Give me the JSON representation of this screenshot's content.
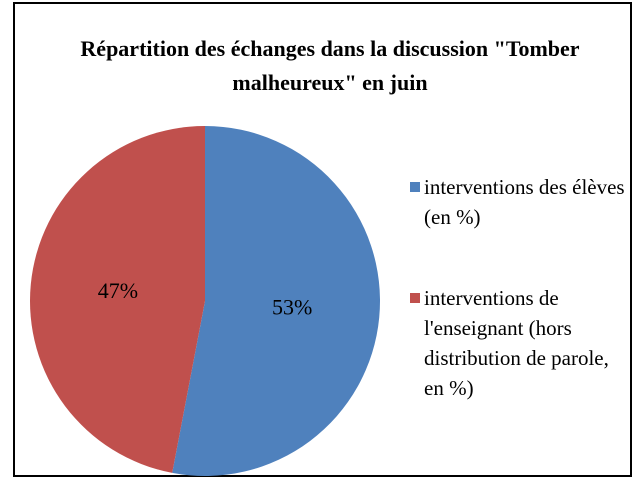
{
  "chart_data": {
    "type": "pie",
    "title": "Répartition des échanges dans la discussion \"Tomber malheureux\" en juin",
    "categories": [
      "interventions des élèves (en %)",
      "interventions de l'enseignant (hors distribution de parole, en %)"
    ],
    "values": [
      53,
      47
    ],
    "value_labels": [
      "53%",
      "47%"
    ],
    "colors": [
      "#4f81bd",
      "#c0504d"
    ],
    "legend": "right"
  }
}
